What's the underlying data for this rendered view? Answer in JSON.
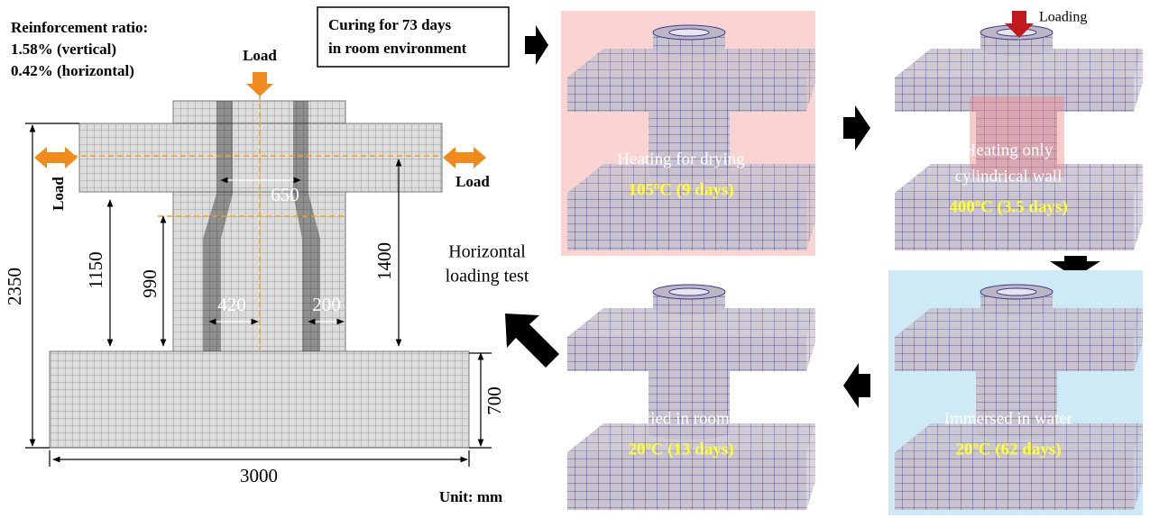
{
  "specimen": {
    "reinforcement": [
      "Reinforcement ratio:",
      "1.58% (vertical)",
      "0.42% (horizontal)"
    ],
    "load_labels": [
      "Load",
      "Load",
      "Load"
    ],
    "dimensions": {
      "flange_gap": "650",
      "column_height": "1150",
      "inner_height": "990",
      "flange_height": "1400",
      "inner_diameter": "420",
      "wall": "200",
      "total_height": "2350",
      "base_height": "700",
      "base_width": "3000"
    },
    "unit": "Unit: mm"
  },
  "curing": [
    "Curing for 73 days",
    "in room environment"
  ],
  "test": [
    "Horizontal",
    "loading test"
  ],
  "stages": [
    {
      "lines": [
        "Heating for drying"
      ],
      "condition": "105ºC (9 days)"
    },
    {
      "load": "Loading",
      "lines": [
        "Heating only",
        "cylindrical wall"
      ],
      "condition": "400ºC (3.5 days)"
    },
    {
      "lines": [
        "Immersed in water"
      ],
      "condition": "20ºC (62 days)"
    },
    {
      "lines": [
        "Dried in room"
      ],
      "condition": "20ºC (13 days)"
    }
  ]
}
